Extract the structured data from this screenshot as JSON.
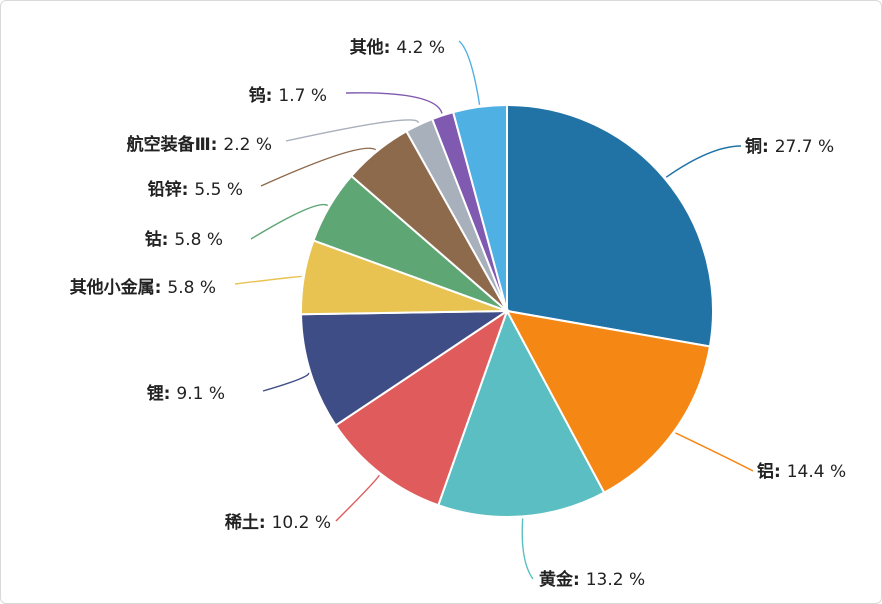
{
  "chart_data": {
    "type": "pie",
    "title": "",
    "start_angle_deg": 0,
    "direction": "clockwise",
    "value_suffix": " %",
    "slices": [
      {
        "name": "铜",
        "value": 27.7,
        "color": "#2173a6"
      },
      {
        "name": "铝",
        "value": 14.4,
        "color": "#f58714"
      },
      {
        "name": "黄金",
        "value": 13.2,
        "color": "#5bbec2"
      },
      {
        "name": "稀土",
        "value": 10.2,
        "color": "#e05c5c"
      },
      {
        "name": "锂",
        "value": 9.1,
        "color": "#3f4d87"
      },
      {
        "name": "其他小金属",
        "value": 5.8,
        "color": "#e8c351"
      },
      {
        "name": "钴",
        "value": 5.8,
        "color": "#5ea673"
      },
      {
        "name": "铅锌",
        "value": 5.5,
        "color": "#8e6a4d"
      },
      {
        "name": "航空装备Ⅲ",
        "value": 2.2,
        "color": "#a8b0bc"
      },
      {
        "name": "钨",
        "value": 1.7,
        "color": "#8059b0"
      },
      {
        "name": "其他",
        "value": 4.2,
        "color": "#4fb0e3"
      }
    ]
  }
}
